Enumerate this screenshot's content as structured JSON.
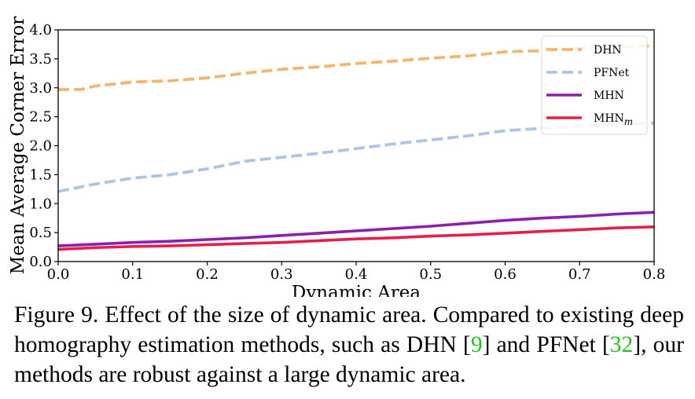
{
  "chart_data": {
    "type": "line",
    "xlabel": "Dynamic Area",
    "ylabel": "Mean Average Corner Error",
    "xlim": [
      0.0,
      0.8
    ],
    "ylim": [
      0.0,
      4.0
    ],
    "xticks": [
      "0.0",
      "0.1",
      "0.2",
      "0.3",
      "0.4",
      "0.5",
      "0.6",
      "0.7",
      "0.8"
    ],
    "yticks": [
      "0.0",
      "0.5",
      "1.0",
      "1.5",
      "2.0",
      "2.5",
      "3.0",
      "3.5",
      "4.0"
    ],
    "grid": false,
    "legend_position": "top-right",
    "series": [
      {
        "name": "DHN",
        "color": "#f5b56a",
        "dashed": true,
        "x": [
          0.0,
          0.03,
          0.05,
          0.1,
          0.15,
          0.2,
          0.25,
          0.3,
          0.35,
          0.4,
          0.45,
          0.5,
          0.55,
          0.6,
          0.65,
          0.7,
          0.75,
          0.8
        ],
        "y": [
          2.97,
          2.97,
          3.03,
          3.1,
          3.12,
          3.17,
          3.25,
          3.32,
          3.36,
          3.42,
          3.46,
          3.51,
          3.55,
          3.62,
          3.64,
          3.68,
          3.71,
          3.72
        ]
      },
      {
        "name": "PFNet",
        "color": "#a9c6e8",
        "dashed": true,
        "x": [
          0.0,
          0.05,
          0.1,
          0.15,
          0.2,
          0.25,
          0.3,
          0.35,
          0.4,
          0.45,
          0.5,
          0.55,
          0.6,
          0.65,
          0.7,
          0.75,
          0.8
        ],
        "y": [
          1.21,
          1.34,
          1.44,
          1.5,
          1.6,
          1.73,
          1.8,
          1.87,
          1.95,
          2.03,
          2.1,
          2.17,
          2.26,
          2.3,
          2.34,
          2.37,
          2.39
        ]
      },
      {
        "name": "MHN",
        "color": "#8a1fb0",
        "dashed": false,
        "x": [
          0.0,
          0.05,
          0.1,
          0.15,
          0.2,
          0.25,
          0.3,
          0.35,
          0.4,
          0.45,
          0.5,
          0.55,
          0.6,
          0.65,
          0.7,
          0.75,
          0.8
        ],
        "y": [
          0.27,
          0.3,
          0.33,
          0.35,
          0.38,
          0.41,
          0.45,
          0.49,
          0.53,
          0.57,
          0.61,
          0.66,
          0.71,
          0.75,
          0.78,
          0.82,
          0.85
        ]
      },
      {
        "name": "MHN",
        "subscript": "m",
        "color": "#e81e4a",
        "dashed": false,
        "x": [
          0.0,
          0.05,
          0.1,
          0.15,
          0.2,
          0.25,
          0.3,
          0.35,
          0.4,
          0.45,
          0.5,
          0.55,
          0.6,
          0.65,
          0.7,
          0.75,
          0.8
        ],
        "y": [
          0.21,
          0.24,
          0.26,
          0.27,
          0.29,
          0.31,
          0.33,
          0.36,
          0.39,
          0.41,
          0.44,
          0.46,
          0.49,
          0.52,
          0.55,
          0.58,
          0.6
        ]
      }
    ]
  },
  "caption": {
    "prefix": "Figure 9. Effect of the size of dynamic area.  Compared to existing deep homography estimation methods, such as DHN ",
    "ref1_open": "[",
    "ref1": "9",
    "ref1_close": "]",
    "middle": " and PFNet ",
    "ref2_open": "[",
    "ref2": "32",
    "ref2_close": "]",
    "suffix": ", our methods are robust against a large dynamic area."
  }
}
